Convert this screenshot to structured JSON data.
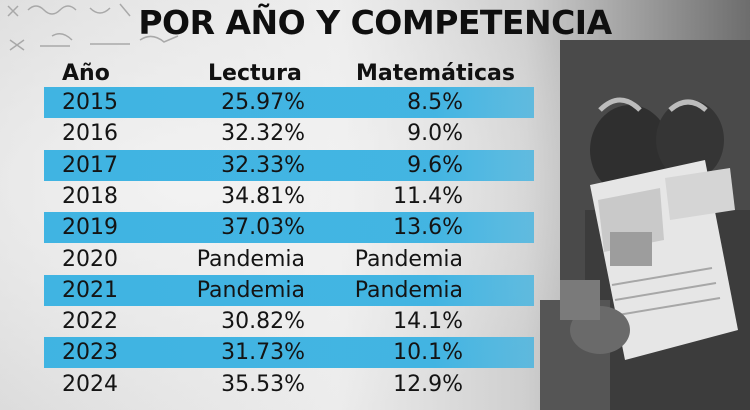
{
  "title": "POR AÑO Y COMPETENCIA",
  "colors": {
    "stripe": "#3AB2E2",
    "text": "#111111",
    "background": "#e6e6e6"
  },
  "chart_data": {
    "type": "table",
    "columns": [
      "Año",
      "Lectura",
      "Matemáticas"
    ],
    "rows": [
      {
        "year": "2015",
        "lectura": "25.97%",
        "matematicas": "8.5%"
      },
      {
        "year": "2016",
        "lectura": "32.32%",
        "matematicas": "9.0%"
      },
      {
        "year": "2017",
        "lectura": "32.33%",
        "matematicas": "9.6%"
      },
      {
        "year": "2018",
        "lectura": "34.81%",
        "matematicas": "11.4%"
      },
      {
        "year": "2019",
        "lectura": "37.03%",
        "matematicas": "13.6%"
      },
      {
        "year": "2020",
        "lectura": "Pandemia",
        "matematicas": "Pandemia"
      },
      {
        "year": "2021",
        "lectura": "Pandemia",
        "matematicas": "Pandemia"
      },
      {
        "year": "2022",
        "lectura": "30.82%",
        "matematicas": "14.1%"
      },
      {
        "year": "2023",
        "lectura": "31.73%",
        "matematicas": "10.1%"
      },
      {
        "year": "2024",
        "lectura": "35.53%",
        "matematicas": "12.9%"
      }
    ]
  }
}
